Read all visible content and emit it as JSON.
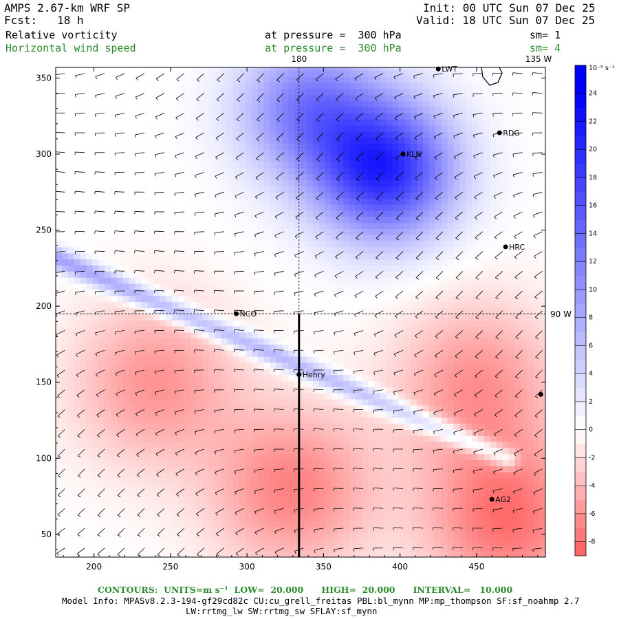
{
  "header": {
    "model_title": "AMPS 2.67-km WRF SP",
    "forecast": "Fcst:   18 h",
    "init": "Init: 00 UTC Sun 07 Dec 25",
    "valid": "Valid: 18 UTC Sun 07 Dec 25",
    "field1_name": "Relative vorticity",
    "field1_level": "at pressure =  300 hPa",
    "field1_smooth": "sm= 1",
    "field2_name": "Horizontal wind speed",
    "field2_level": "at pressure =  300 hPa",
    "field2_smooth": "sm= 4"
  },
  "colors": {
    "positive": "#0000ff",
    "negative": "#f06060",
    "neutral": "#ffffff",
    "text_green": "#2c8a2c"
  },
  "chart_data": {
    "type": "heatmap",
    "title": "Relative vorticity",
    "overlay": "wind barbs (Horizontal wind speed)",
    "x_ticks": [
      "200",
      "250",
      "300",
      "350",
      "400",
      "450"
    ],
    "y_ticks": [
      "50",
      "100",
      "150",
      "200",
      "250",
      "300",
      "350"
    ],
    "xlim": [
      175,
      495
    ],
    "ylim": [
      35,
      357
    ],
    "grid": false,
    "reference_lines": {
      "meridian_180": {
        "label": "180",
        "x": 334
      },
      "meridian_135W": {
        "label": "135 W"
      },
      "parallel_90W": {
        "label": "90 W",
        "y": 195
      }
    },
    "cross_section_line": {
      "x": 334,
      "y_from": 35,
      "y_to": 195
    },
    "stations": [
      {
        "name": "LWT",
        "x": 425,
        "y": 356
      },
      {
        "name": "RDG",
        "x": 465,
        "y": 314
      },
      {
        "name": "KLN",
        "x": 402,
        "y": 300
      },
      {
        "name": "HRC",
        "x": 469,
        "y": 239
      },
      {
        "name": "NCO",
        "x": 293,
        "y": 195
      },
      {
        "name": "Henry",
        "x": 334,
        "y": 155
      },
      {
        "name": "AG2",
        "x": 460,
        "y": 73
      },
      {
        "name": "",
        "x": 492,
        "y": 142
      }
    ],
    "colorbar": {
      "units": "10⁻⁵ s⁻¹",
      "ticks": [
        "24",
        "22",
        "20",
        "18",
        "16",
        "14",
        "12",
        "10",
        "8",
        "6",
        "4",
        "2",
        "0",
        "-2",
        "-4",
        "-6",
        "-8"
      ],
      "range": [
        -9,
        26
      ]
    },
    "features": [
      {
        "kind": "positive_band",
        "from": [
          175,
          232
        ],
        "to": [
          470,
          100
        ],
        "strength": 9
      },
      {
        "kind": "positive_core",
        "at": [
          390,
          290
        ],
        "strength": 20
      },
      {
        "kind": "positive_core",
        "at": [
          340,
          330
        ],
        "strength": 12
      },
      {
        "kind": "negative_area",
        "at": [
          240,
          150
        ],
        "strength": -6
      },
      {
        "kind": "negative_area",
        "at": [
          330,
          80
        ],
        "strength": -7
      },
      {
        "kind": "negative_area",
        "at": [
          450,
          150
        ],
        "strength": -6
      },
      {
        "kind": "negative_area",
        "at": [
          470,
          60
        ],
        "strength": -8
      }
    ]
  },
  "footer": {
    "contours": "CONTOURS:  UNITS=m s⁻¹  LOW=  20.000      HIGH=  20.000      INTERVAL=   10.000",
    "model_info_1": "Model Info: MPASv8.2.3-194-gf29cd82c CU:cu_grell_freitas PBL:bl_mynn MP:mp_thompson SF:sf_noahmp 2.7",
    "model_info_2": "LW:rrtmg_lw SW:rrtmg_sw SFLAY:sf_mynn"
  }
}
